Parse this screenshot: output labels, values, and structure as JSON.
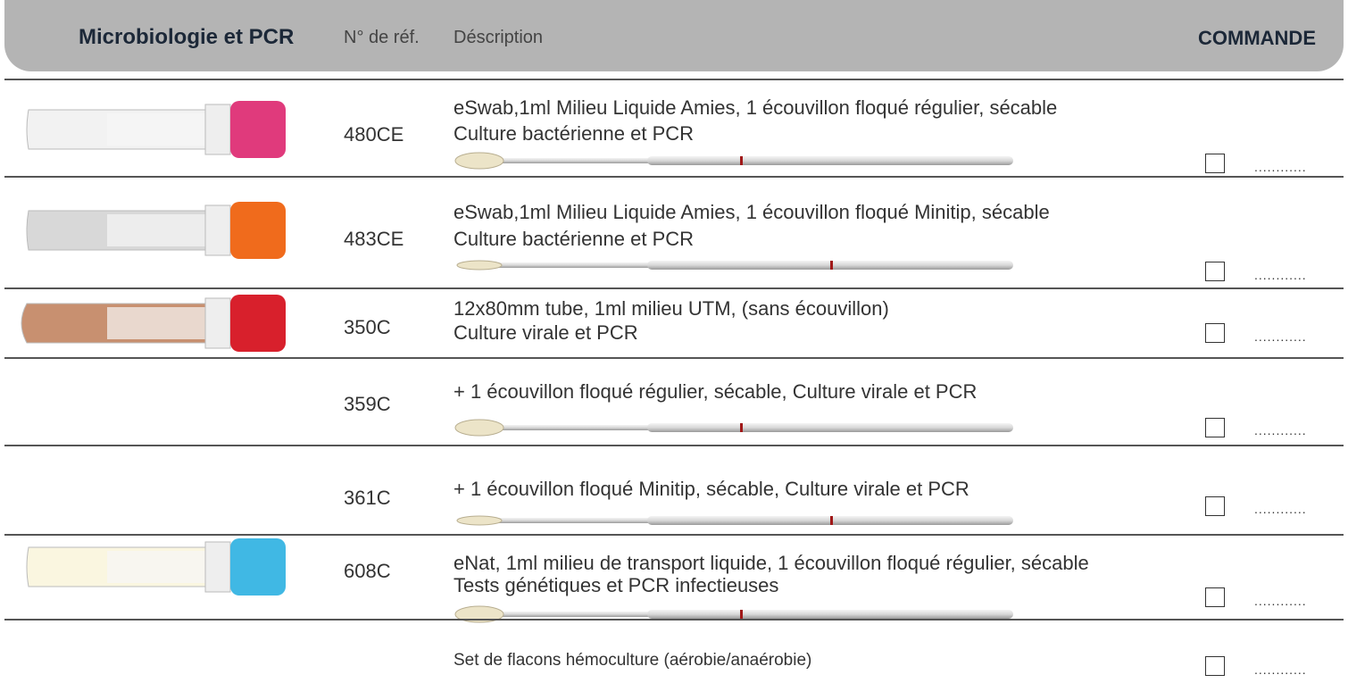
{
  "header": {
    "title": "Microbiologie et PCR",
    "ref_label": "N° de réf.",
    "description_label": "Déscription",
    "order_label": "COMMANDE"
  },
  "rows": [
    {
      "ref": "480CE",
      "description": [
        "eSwab,1ml Milieu Liquide Amies, 1 écouvillon floqué régulier, sécable",
        "Culture bactérienne et PCR"
      ],
      "quantity": "............"
    },
    {
      "ref": "483CE",
      "description": [
        "eSwab,1ml Milieu Liquide Amies, 1 écouvillon floqué Minitip, sécable",
        "Culture bactérienne et PCR"
      ],
      "quantity": "............"
    },
    {
      "ref": "350C",
      "description": [
        "12x80mm tube, 1ml milieu UTM, (sans écouvillon)",
        "Culture virale et PCR"
      ],
      "quantity": "............"
    },
    {
      "ref": "359C",
      "description": [
        "+ 1 écouvillon floqué régulier, sécable, Culture virale et PCR"
      ],
      "quantity": "............"
    },
    {
      "ref": "361C",
      "description": [
        "+ 1 écouvillon floqué Minitip, sécable, Culture virale et PCR"
      ],
      "quantity": "............"
    },
    {
      "ref": "608C",
      "description": [
        "eNat, 1ml milieu de transport liquide, 1 écouvillon floqué régulier, sécable",
        "Tests génétiques et PCR infectieuses"
      ],
      "quantity": "............"
    },
    {
      "description": [
        "Set de flacons hémoculture (aérobie/anaérobie)"
      ],
      "quantity": "............"
    }
  ]
}
